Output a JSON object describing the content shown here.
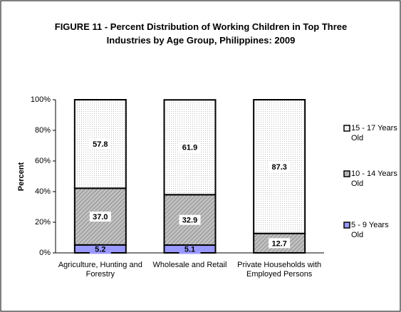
{
  "chart_data": {
    "type": "bar",
    "stacked": true,
    "title": "FIGURE 11 - Percent Distribution of Working Children in Top Three Industries by Age Group, Philippines: 2009",
    "y_label": "Percent",
    "categories": [
      "Agriculture, Hunting and Forestry",
      "Wholesale and Retail",
      "Private Households with Employed Persons"
    ],
    "series": [
      {
        "name": "5 - 9 Years Old",
        "color": "#9999ff",
        "values": [
          5.2,
          5.1,
          null
        ],
        "value_labels": [
          "5.2",
          "5.1",
          null
        ]
      },
      {
        "name": "10 - 14 Years Old",
        "color": "#c0c0c0",
        "values": [
          37.0,
          32.9,
          12.7
        ],
        "value_labels": [
          "37.0",
          "32.9",
          "12.7"
        ]
      },
      {
        "name": "15 - 17 Years Old",
        "color": "#ffffff",
        "values": [
          57.8,
          61.9,
          87.3
        ],
        "value_labels": [
          "57.8",
          "61.9",
          "87.3"
        ]
      }
    ],
    "ylim": [
      0,
      100
    ],
    "yticks": [
      {
        "value": 0,
        "label": "0%"
      },
      {
        "value": 20,
        "label": "20%"
      },
      {
        "value": 40,
        "label": "40%"
      },
      {
        "value": 60,
        "label": "60%"
      },
      {
        "value": 80,
        "label": "80%"
      },
      {
        "value": 100,
        "label": "100%"
      }
    ],
    "legend": "right"
  }
}
